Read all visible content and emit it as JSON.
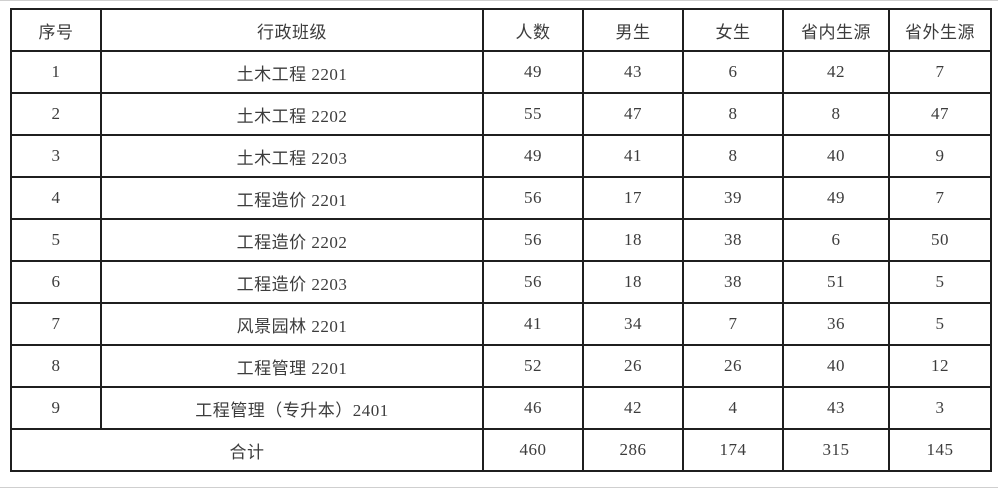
{
  "table": {
    "headers": [
      "序号",
      "行政班级",
      "人数",
      "男生",
      "女生",
      "省内生源",
      "省外生源"
    ],
    "rows": [
      [
        "1",
        "土木工程 2201",
        "49",
        "43",
        "6",
        "42",
        "7"
      ],
      [
        "2",
        "土木工程 2202",
        "55",
        "47",
        "8",
        "8",
        "47"
      ],
      [
        "3",
        "土木工程 2203",
        "49",
        "41",
        "8",
        "40",
        "9"
      ],
      [
        "4",
        "工程造价 2201",
        "56",
        "17",
        "39",
        "49",
        "7"
      ],
      [
        "5",
        "工程造价 2202",
        "56",
        "18",
        "38",
        "6",
        "50"
      ],
      [
        "6",
        "工程造价 2203",
        "56",
        "18",
        "38",
        "51",
        "5"
      ],
      [
        "7",
        "风景园林 2201",
        "41",
        "34",
        "7",
        "36",
        "5"
      ],
      [
        "8",
        "工程管理 2201",
        "52",
        "26",
        "26",
        "40",
        "12"
      ],
      [
        "9",
        "工程管理（专升本）2401",
        "46",
        "42",
        "4",
        "43",
        "3"
      ]
    ],
    "total_row": [
      "合计",
      "460",
      "286",
      "174",
      "315",
      "145"
    ],
    "colors": {
      "border": "#1f1f1f",
      "text": "#3c3c3c",
      "background": "#ffffff"
    }
  }
}
